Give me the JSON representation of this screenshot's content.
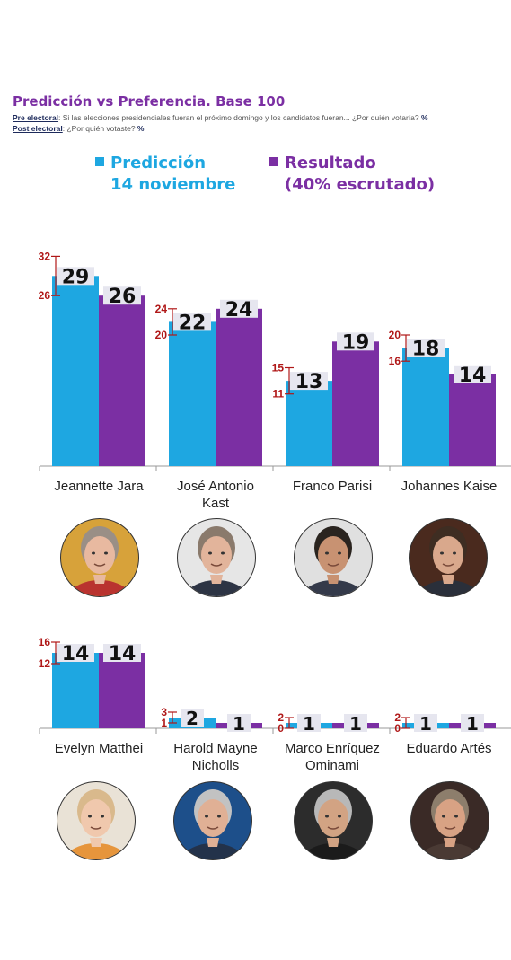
{
  "header": {
    "title": "Predicción vs Preferencia. Base 100",
    "pre_label": "Pre electoral",
    "pre_text": ": Si las elecciones presidenciales fueran el próximo domingo y los candidatos fueran... ¿Por quién votaría?",
    "post_label": "Post electoral",
    "post_text": ": ¿Por quién votaste?",
    "pct": "%"
  },
  "legend": {
    "prediccion_line1": "Predicción",
    "prediccion_line2": "14 noviembre",
    "resultado_line1": "Resultado",
    "resultado_line2": "(40% escrutado)"
  },
  "colors": {
    "prediccion": "#1ea7e1",
    "resultado": "#7b2fa3",
    "error": "#b01818",
    "label_bg": "#e6e6ef"
  },
  "chart_data": [
    {
      "type": "bar",
      "categories": [
        "Jeannette Jara",
        "José Antonio Kast",
        "Franco Parisi",
        "Johannes Kaiser"
      ],
      "category_lines": [
        [
          "Jeannette Jara"
        ],
        [
          "José Antonio",
          "Kast"
        ],
        [
          "Franco Parisi"
        ],
        [
          "Johannes Kaise"
        ]
      ],
      "series": [
        {
          "name": "Predicción 14 noviembre",
          "values": [
            29,
            22,
            13,
            18
          ]
        },
        {
          "name": "Resultado (40% escrutado)",
          "values": [
            26,
            24,
            19,
            14
          ]
        }
      ],
      "error_range": [
        [
          26,
          32
        ],
        [
          20,
          24
        ],
        [
          11,
          15
        ],
        [
          16,
          20
        ]
      ],
      "ylim": [
        0,
        33
      ]
    },
    {
      "type": "bar",
      "categories": [
        "Evelyn Matthei",
        "Harold Mayne Nicholls",
        "Marco Enríquez Ominami",
        "Eduardo Artés"
      ],
      "category_lines": [
        [
          "Evelyn Matthei"
        ],
        [
          "Harold Mayne",
          "Nicholls"
        ],
        [
          "Marco Enríquez",
          "Ominami"
        ],
        [
          "Eduardo Artés"
        ]
      ],
      "series": [
        {
          "name": "Predicción 14 noviembre",
          "values": [
            14,
            2,
            1,
            1
          ]
        },
        {
          "name": "Resultado (40% escrutado)",
          "values": [
            14,
            1,
            1,
            1
          ]
        }
      ],
      "error_range": [
        [
          12,
          16
        ],
        [
          1,
          3
        ],
        [
          0,
          2
        ],
        [
          0,
          2
        ]
      ],
      "ylim": [
        0,
        17
      ]
    }
  ],
  "photos": [
    {
      "name": "jeannette-jara-photo",
      "skin": "#e8b9a0",
      "hair": "#9a8f86",
      "bg": "#d7a23a",
      "suit": "#b9332f"
    },
    {
      "name": "jose-antonio-kast-photo",
      "skin": "#e2b49b",
      "hair": "#8a7a6c",
      "bg": "#e6e6e6",
      "suit": "#2d3444"
    },
    {
      "name": "franco-parisi-photo",
      "skin": "#c89272",
      "hair": "#2a241f",
      "bg": "#e0e0e0",
      "suit": "#343a4a"
    },
    {
      "name": "johannes-kaiser-photo",
      "skin": "#d9a88c",
      "hair": "#3e2d22",
      "bg": "#4a2a1e",
      "suit": "#2a2f3a"
    },
    {
      "name": "evelyn-matthei-photo",
      "skin": "#f0c8ad",
      "hair": "#d9b98c",
      "bg": "#e9e2d6",
      "suit": "#e6953c"
    },
    {
      "name": "harold-mayne-nicholls-photo",
      "skin": "#e0b095",
      "hair": "#c2c2c2",
      "bg": "#1d4f8a",
      "suit": "#23324a"
    },
    {
      "name": "marco-enriquez-ominami-photo",
      "skin": "#d2a383",
      "hair": "#b8b8b8",
      "bg": "#2c2c2c",
      "suit": "#1b1b1b"
    },
    {
      "name": "eduardo-artes-photo",
      "skin": "#d8a284",
      "hair": "#8d7e6c",
      "bg": "#3a2a26",
      "suit": "#4a3a34"
    }
  ]
}
